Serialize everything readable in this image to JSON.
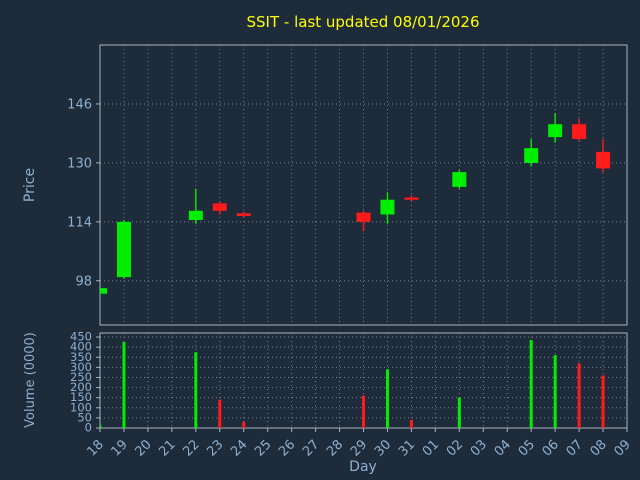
{
  "colors": {
    "background": "#1d2b3a",
    "title": "#ffff00",
    "up": "#00ef00",
    "down": "#ff1b1b",
    "tick_label": "#8fb0cf",
    "grid": "#93a1ad",
    "spine": "#aab4be"
  },
  "chart_data": {
    "type": "candlestick",
    "title": "SSIT - last updated 08/01/2026",
    "xlabel": "Day",
    "categories": [
      "18",
      "19",
      "20",
      "21",
      "22",
      "23",
      "24",
      "25",
      "26",
      "27",
      "28",
      "29",
      "30",
      "31",
      "01",
      "02",
      "03",
      "04",
      "05",
      "06",
      "07",
      "08",
      "09"
    ],
    "price_panel": {
      "ylabel": "Price",
      "ylim": [
        86,
        162
      ],
      "yticks": [
        98,
        114,
        130,
        146
      ],
      "grid": "dotted"
    },
    "volume_panel": {
      "ylabel": "Volume (0000)",
      "ylim": [
        0,
        470
      ],
      "yticks": [
        0,
        50,
        100,
        150,
        200,
        250,
        300,
        350,
        400,
        450
      ],
      "grid": "dotted"
    },
    "candles": [
      {
        "day": "18",
        "open": 94.5,
        "high": 96.5,
        "low": 94.0,
        "close": 96.0
      },
      {
        "day": "19",
        "open": 99.0,
        "high": 114.5,
        "low": 98.5,
        "close": 114.0
      },
      {
        "day": "22",
        "open": 114.5,
        "high": 123.0,
        "low": 113.5,
        "close": 117.0
      },
      {
        "day": "23",
        "open": 119.0,
        "high": 119.5,
        "low": 116.0,
        "close": 117.0
      },
      {
        "day": "24",
        "open": 116.3,
        "high": 116.8,
        "low": 115.2,
        "close": 115.6
      },
      {
        "day": "29",
        "open": 116.5,
        "high": 117.0,
        "low": 111.5,
        "close": 114.0
      },
      {
        "day": "30",
        "open": 116.0,
        "high": 122.0,
        "low": 113.5,
        "close": 120.0
      },
      {
        "day": "31",
        "open": 120.6,
        "high": 121.2,
        "low": 119.6,
        "close": 120.0
      },
      {
        "day": "02",
        "open": 123.5,
        "high": 128.0,
        "low": 123.0,
        "close": 127.5
      },
      {
        "day": "05",
        "open": 130.0,
        "high": 136.5,
        "low": 129.0,
        "close": 134.0
      },
      {
        "day": "06",
        "open": 137.0,
        "high": 143.5,
        "low": 135.5,
        "close": 140.5
      },
      {
        "day": "07",
        "open": 140.5,
        "high": 142.0,
        "low": 136.0,
        "close": 136.5
      },
      {
        "day": "08",
        "open": 133.0,
        "high": 136.5,
        "low": 127.5,
        "close": 128.5
      }
    ],
    "volumes": [
      {
        "day": "18",
        "value": 15
      },
      {
        "day": "19",
        "value": 425
      },
      {
        "day": "22",
        "value": 375
      },
      {
        "day": "23",
        "value": 140
      },
      {
        "day": "24",
        "value": 30
      },
      {
        "day": "29",
        "value": 160
      },
      {
        "day": "30",
        "value": 290
      },
      {
        "day": "31",
        "value": 40
      },
      {
        "day": "02",
        "value": 150
      },
      {
        "day": "05",
        "value": 435
      },
      {
        "day": "06",
        "value": 360
      },
      {
        "day": "07",
        "value": 320
      },
      {
        "day": "08",
        "value": 260
      }
    ]
  }
}
